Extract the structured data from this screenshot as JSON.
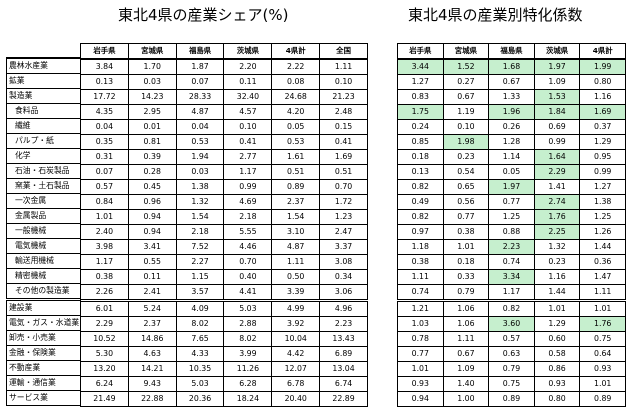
{
  "titles": {
    "left": "東北4県の産業シェア(%)",
    "right": "東北4県の産業別特化係数"
  },
  "share_headers": [
    "岩手県",
    "宮城県",
    "福島県",
    "茨城県",
    "4県計",
    "全国"
  ],
  "coef_headers": [
    "岩手県",
    "宮城県",
    "福島県",
    "茨城県",
    "4県計"
  ],
  "highlight_color": "#c6efce",
  "rows": [
    {
      "label": "農林水産業",
      "sub": false,
      "share": [
        "3.84",
        "1.70",
        "1.87",
        "2.20",
        "2.22",
        "1.11"
      ],
      "coef": [
        "3.44",
        "1.52",
        "1.68",
        "1.97",
        "1.99"
      ],
      "hl": [
        1,
        1,
        1,
        1,
        1
      ]
    },
    {
      "label": "鉱業",
      "sub": false,
      "share": [
        "0.13",
        "0.03",
        "0.07",
        "0.11",
        "0.08",
        "0.10"
      ],
      "coef": [
        "1.27",
        "0.27",
        "0.67",
        "1.09",
        "0.80"
      ],
      "hl": [
        0,
        0,
        0,
        0,
        0
      ]
    },
    {
      "label": "製造業",
      "sub": false,
      "share": [
        "17.72",
        "14.23",
        "28.33",
        "32.40",
        "24.68",
        "21.23"
      ],
      "coef": [
        "0.83",
        "0.67",
        "1.33",
        "1.53",
        "1.16"
      ],
      "hl": [
        0,
        0,
        0,
        1,
        0
      ]
    },
    {
      "label": "食料品",
      "sub": true,
      "share": [
        "4.35",
        "2.95",
        "4.87",
        "4.57",
        "4.20",
        "2.48"
      ],
      "coef": [
        "1.75",
        "1.19",
        "1.96",
        "1.84",
        "1.69"
      ],
      "hl": [
        1,
        0,
        1,
        1,
        1
      ]
    },
    {
      "label": "繊維",
      "sub": true,
      "share": [
        "0.04",
        "0.01",
        "0.04",
        "0.10",
        "0.05",
        "0.15"
      ],
      "coef": [
        "0.24",
        "0.10",
        "0.26",
        "0.69",
        "0.37"
      ],
      "hl": [
        0,
        0,
        0,
        0,
        0
      ]
    },
    {
      "label": "パルプ・紙",
      "sub": true,
      "share": [
        "0.35",
        "0.81",
        "0.53",
        "0.41",
        "0.53",
        "0.41"
      ],
      "coef": [
        "0.85",
        "1.98",
        "1.28",
        "0.99",
        "1.29"
      ],
      "hl": [
        0,
        1,
        0,
        0,
        0
      ]
    },
    {
      "label": "化学",
      "sub": true,
      "share": [
        "0.31",
        "0.39",
        "1.94",
        "2.77",
        "1.61",
        "1.69"
      ],
      "coef": [
        "0.18",
        "0.23",
        "1.14",
        "1.64",
        "0.95"
      ],
      "hl": [
        0,
        0,
        0,
        1,
        0
      ]
    },
    {
      "label": "石油・石炭製品",
      "sub": true,
      "share": [
        "0.07",
        "0.28",
        "0.03",
        "1.17",
        "0.51",
        "0.51"
      ],
      "coef": [
        "0.13",
        "0.54",
        "0.05",
        "2.29",
        "0.99"
      ],
      "hl": [
        0,
        0,
        0,
        1,
        0
      ]
    },
    {
      "label": "窯業・土石製品",
      "sub": true,
      "share": [
        "0.57",
        "0.45",
        "1.38",
        "0.99",
        "0.89",
        "0.70"
      ],
      "coef": [
        "0.82",
        "0.65",
        "1.97",
        "1.41",
        "1.27"
      ],
      "hl": [
        0,
        0,
        1,
        0,
        0
      ]
    },
    {
      "label": "一次金属",
      "sub": true,
      "share": [
        "0.84",
        "0.96",
        "1.32",
        "4.69",
        "2.37",
        "1.72"
      ],
      "coef": [
        "0.49",
        "0.56",
        "0.77",
        "2.74",
        "1.38"
      ],
      "hl": [
        0,
        0,
        0,
        1,
        0
      ]
    },
    {
      "label": "金属製品",
      "sub": true,
      "share": [
        "1.01",
        "0.94",
        "1.54",
        "2.18",
        "1.54",
        "1.23"
      ],
      "coef": [
        "0.82",
        "0.77",
        "1.25",
        "1.76",
        "1.25"
      ],
      "hl": [
        0,
        0,
        0,
        1,
        0
      ]
    },
    {
      "label": "一般機械",
      "sub": true,
      "share": [
        "2.40",
        "0.94",
        "2.18",
        "5.55",
        "3.10",
        "2.47"
      ],
      "coef": [
        "0.97",
        "0.38",
        "0.88",
        "2.25",
        "1.26"
      ],
      "hl": [
        0,
        0,
        0,
        1,
        0
      ]
    },
    {
      "label": "電気機械",
      "sub": true,
      "share": [
        "3.98",
        "3.41",
        "7.52",
        "4.46",
        "4.87",
        "3.37"
      ],
      "coef": [
        "1.18",
        "1.01",
        "2.23",
        "1.32",
        "1.44"
      ],
      "hl": [
        0,
        0,
        1,
        0,
        0
      ]
    },
    {
      "label": "輸送用機械",
      "sub": true,
      "share": [
        "1.17",
        "0.55",
        "2.27",
        "0.70",
        "1.11",
        "3.08"
      ],
      "coef": [
        "0.38",
        "0.18",
        "0.74",
        "0.23",
        "0.36"
      ],
      "hl": [
        0,
        0,
        0,
        0,
        0
      ]
    },
    {
      "label": "精密機械",
      "sub": true,
      "share": [
        "0.38",
        "0.11",
        "1.15",
        "0.40",
        "0.50",
        "0.34"
      ],
      "coef": [
        "1.11",
        "0.33",
        "3.34",
        "1.16",
        "1.47"
      ],
      "hl": [
        0,
        0,
        1,
        0,
        0
      ]
    },
    {
      "label": "その他の製造業",
      "sub": true,
      "share": [
        "2.26",
        "2.41",
        "3.57",
        "4.41",
        "3.39",
        "3.06"
      ],
      "coef": [
        "0.74",
        "0.79",
        "1.17",
        "1.44",
        "1.11"
      ],
      "hl": [
        0,
        0,
        0,
        0,
        0
      ]
    },
    {
      "label": "建設業",
      "sub": false,
      "share": [
        "6.01",
        "5.24",
        "4.09",
        "5.03",
        "4.99",
        "4.96"
      ],
      "coef": [
        "1.21",
        "1.06",
        "0.82",
        "1.01",
        "1.01"
      ],
      "hl": [
        0,
        0,
        0,
        0,
        0
      ]
    },
    {
      "label": "電気・ガス・水道業",
      "sub": false,
      "share": [
        "2.29",
        "2.37",
        "8.02",
        "2.88",
        "3.92",
        "2.23"
      ],
      "coef": [
        "1.03",
        "1.06",
        "3.60",
        "1.29",
        "1.76"
      ],
      "hl": [
        0,
        0,
        1,
        0,
        1
      ]
    },
    {
      "label": "卸売・小売業",
      "sub": false,
      "share": [
        "10.52",
        "14.86",
        "7.65",
        "8.02",
        "10.04",
        "13.43"
      ],
      "coef": [
        "0.78",
        "1.11",
        "0.57",
        "0.60",
        "0.75"
      ],
      "hl": [
        0,
        0,
        0,
        0,
        0
      ]
    },
    {
      "label": "金融・保険業",
      "sub": false,
      "share": [
        "5.30",
        "4.63",
        "4.33",
        "3.99",
        "4.42",
        "6.89"
      ],
      "coef": [
        "0.77",
        "0.67",
        "0.63",
        "0.58",
        "0.64"
      ],
      "hl": [
        0,
        0,
        0,
        0,
        0
      ]
    },
    {
      "label": "不動産業",
      "sub": false,
      "share": [
        "13.20",
        "14.21",
        "10.35",
        "11.26",
        "12.07",
        "13.04"
      ],
      "coef": [
        "1.01",
        "1.09",
        "0.79",
        "0.86",
        "0.93"
      ],
      "hl": [
        0,
        0,
        0,
        0,
        0
      ]
    },
    {
      "label": "運輸・通信業",
      "sub": false,
      "share": [
        "6.24",
        "9.43",
        "5.03",
        "6.28",
        "6.78",
        "6.74"
      ],
      "coef": [
        "0.93",
        "1.40",
        "0.75",
        "0.93",
        "1.01"
      ],
      "hl": [
        0,
        0,
        0,
        0,
        0
      ]
    },
    {
      "label": "サービス業",
      "sub": false,
      "share": [
        "21.49",
        "22.88",
        "20.36",
        "18.24",
        "20.40",
        "22.89"
      ],
      "coef": [
        "0.94",
        "1.00",
        "0.89",
        "0.80",
        "0.89"
      ],
      "hl": [
        0,
        0,
        0,
        0,
        0
      ]
    }
  ]
}
